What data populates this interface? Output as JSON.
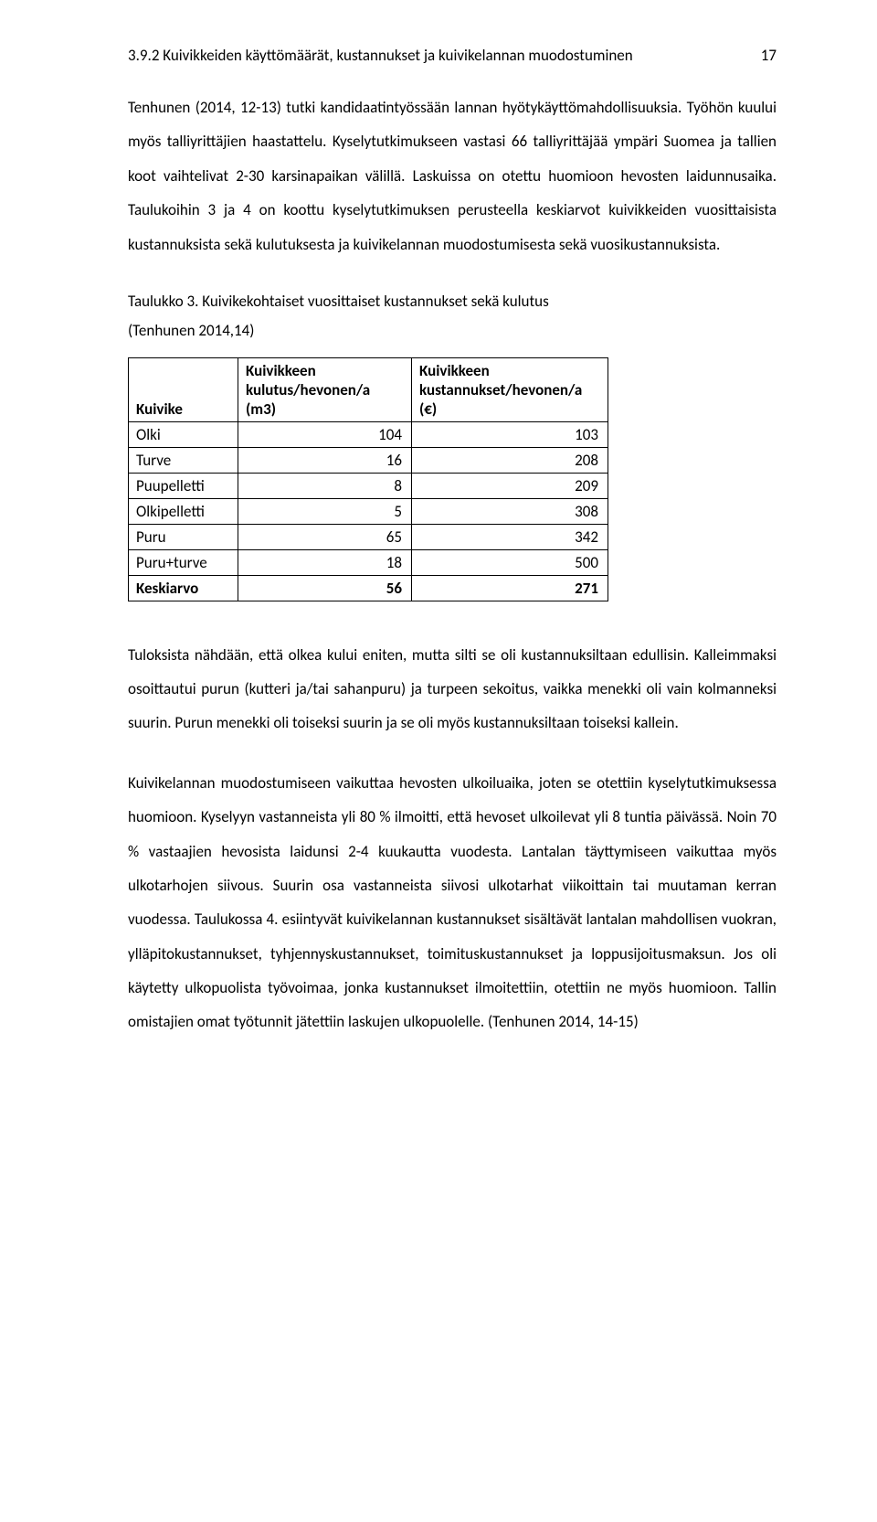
{
  "page_number": "17",
  "heading": "3.9.2   Kuivikkeiden käyttömäärät, kustannukset ja kuivikelannan muodostuminen",
  "para1": "Tenhunen (2014, 12-13) tutki kandidaatintyössään lannan hyötykäyttömahdollisuuksia. Työhön kuului myös talliyrittäjien haastattelu. Kyselytutkimukseen vastasi 66 talliyrittäjää ympäri Suomea ja tallien koot vaihtelivat 2-30 karsinapaikan välillä. Laskuissa on otettu huomioon hevosten laidunnusaika. Taulukoihin 3 ja 4 on koottu kyselytutkimuksen perusteella keskiarvot kuivikkeiden vuosittaisista kustannuksista sekä kulutuksesta ja kuivikelannan muodostumisesta sekä vuosikustannuksista.",
  "table_caption_line1": "Taulukko 3. Kuivikekohtaiset vuosittaiset kustannukset sekä kulutus",
  "table_caption_line2": "(Tenhunen 2014,14)",
  "table": {
    "columns": [
      "Kuivike",
      "Kuivikkeen kulutus/hevonen/a (m3)",
      "Kuivikkeen kustannukset/hevonen/a (€)"
    ],
    "rows": [
      {
        "label": "Olki",
        "consumption": "104",
        "cost": "103",
        "bold": false
      },
      {
        "label": "Turve",
        "consumption": "16",
        "cost": "208",
        "bold": false
      },
      {
        "label": "Puupelletti",
        "consumption": "8",
        "cost": "209",
        "bold": false
      },
      {
        "label": "Olkipelletti",
        "consumption": "5",
        "cost": "308",
        "bold": false
      },
      {
        "label": "Puru",
        "consumption": "65",
        "cost": "342",
        "bold": false
      },
      {
        "label": "Puru+turve",
        "consumption": "18",
        "cost": "500",
        "bold": false
      },
      {
        "label": "Keskiarvo",
        "consumption": "56",
        "cost": "271",
        "bold": true
      }
    ]
  },
  "para2": "Tuloksista nähdään, että olkea kului eniten, mutta silti se oli kustannuksiltaan edullisin. Kalleimmaksi osoittautui purun (kutteri ja/tai sahanpuru) ja turpeen sekoitus, vaikka menekki oli vain kolmanneksi suurin. Purun menekki oli toiseksi suurin ja se oli myös kustannuksiltaan toiseksi kallein.",
  "para3": "Kuivikelannan muodostumiseen vaikuttaa hevosten ulkoiluaika, joten se otettiin kyselytutkimuksessa huomioon. Kyselyyn vastanneista yli 80 % ilmoitti, että hevoset ulkoilevat yli 8 tuntia päivässä. Noin 70 % vastaajien hevosista laidunsi 2-4 kuukautta vuodesta. Lantalan täyttymiseen vaikuttaa myös ulkotarhojen siivous. Suurin osa vastanneista siivosi ulkotarhat viikoittain tai muutaman kerran vuodessa. Taulukossa 4. esiintyvät kuivikelannan kustannukset sisältävät lantalan mahdollisen vuokran, ylläpitokustannukset, tyhjennyskustannukset, toimituskustannukset ja loppusijoitusmaksun. Jos oli käytetty ulkopuolista työvoimaa, jonka kustannukset ilmoitettiin, otettiin ne myös huomioon. Tallin omistajien omat työtunnit jätettiin laskujen ulkopuolelle. (Tenhunen 2014, 14-15)"
}
